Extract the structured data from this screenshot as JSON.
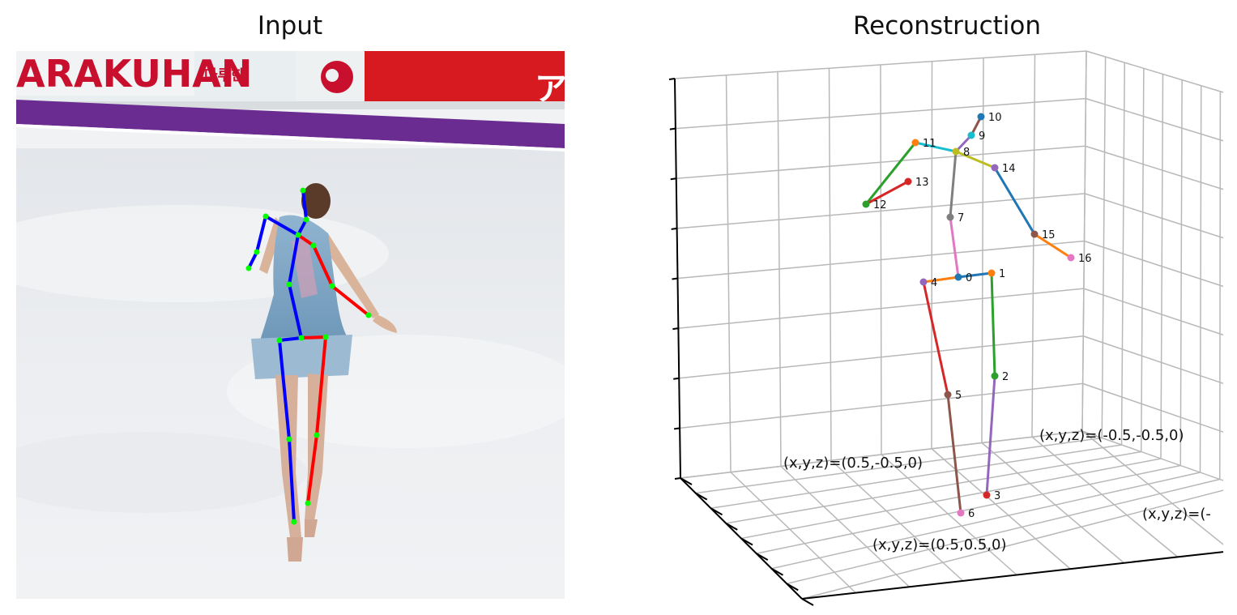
{
  "titles": {
    "left": "Input",
    "right": "Reconstruction"
  },
  "input_image": {
    "description_icon": "figure-skater-photo",
    "banner_text_left": "ARAKUHAN",
    "banner_text_korean": "마루한",
    "banner_text_right": "ア",
    "skeleton_colors": {
      "left_side": "#0000ff",
      "right_side": "#ff0000",
      "joint": "#00ff00"
    }
  },
  "chart_data": {
    "type": "3d-skeleton",
    "title": "Reconstruction",
    "joints": [
      {
        "id": "0",
        "name": "hip",
        "color": "#1f77b4"
      },
      {
        "id": "1",
        "name": "right-hip",
        "color": "#ff7f0e"
      },
      {
        "id": "2",
        "name": "right-knee",
        "color": "#2ca02c"
      },
      {
        "id": "3",
        "name": "right-ankle",
        "color": "#d62728"
      },
      {
        "id": "4",
        "name": "left-hip",
        "color": "#9467bd"
      },
      {
        "id": "5",
        "name": "left-knee",
        "color": "#8c564b"
      },
      {
        "id": "6",
        "name": "left-ankle",
        "color": "#e377c2"
      },
      {
        "id": "7",
        "name": "spine",
        "color": "#7f7f7f"
      },
      {
        "id": "8",
        "name": "thorax",
        "color": "#bcbd22"
      },
      {
        "id": "9",
        "name": "neck",
        "color": "#17becf"
      },
      {
        "id": "10",
        "name": "head",
        "color": "#1f77b4"
      },
      {
        "id": "11",
        "name": "left-shoulder",
        "color": "#ff7f0e"
      },
      {
        "id": "12",
        "name": "left-elbow",
        "color": "#2ca02c"
      },
      {
        "id": "13",
        "name": "left-wrist",
        "color": "#d62728"
      },
      {
        "id": "14",
        "name": "right-shoulder",
        "color": "#9467bd"
      },
      {
        "id": "15",
        "name": "right-elbow",
        "color": "#8c564b"
      },
      {
        "id": "16",
        "name": "right-wrist",
        "color": "#e377c2"
      }
    ],
    "bones": [
      {
        "from": "0",
        "to": "1",
        "color": "#1f77b4"
      },
      {
        "from": "1",
        "to": "2",
        "color": "#2ca02c"
      },
      {
        "from": "2",
        "to": "3",
        "color": "#9467bd"
      },
      {
        "from": "0",
        "to": "4",
        "color": "#ff7f0e"
      },
      {
        "from": "4",
        "to": "5",
        "color": "#d62728"
      },
      {
        "from": "5",
        "to": "6",
        "color": "#8c564b"
      },
      {
        "from": "0",
        "to": "7",
        "color": "#e377c2"
      },
      {
        "from": "7",
        "to": "8",
        "color": "#7f7f7f"
      },
      {
        "from": "8",
        "to": "9",
        "color": "#9467bd"
      },
      {
        "from": "9",
        "to": "10",
        "color": "#8c564b"
      },
      {
        "from": "8",
        "to": "11",
        "color": "#17becf"
      },
      {
        "from": "11",
        "to": "12",
        "color": "#2ca02c"
      },
      {
        "from": "12",
        "to": "13",
        "color": "#d62728"
      },
      {
        "from": "8",
        "to": "14",
        "color": "#bcbd22"
      },
      {
        "from": "14",
        "to": "15",
        "color": "#1f77b4"
      },
      {
        "from": "15",
        "to": "16",
        "color": "#ff7f0e"
      }
    ],
    "annotations": [
      {
        "text": "(x,y,z)=(0.5,-0.5,0)",
        "anchor": "left-floor-corner"
      },
      {
        "text": "(x,y,z)=(-0.5,-0.5,0)",
        "anchor": "back-floor-corner"
      },
      {
        "text": "(x,y,z)=(0.5,0.5,0)",
        "anchor": "front-floor-corner"
      },
      {
        "text": "(x,y,z)=(-",
        "anchor": "right-floor-corner-clipped"
      }
    ],
    "grid": true,
    "tick_labels": false
  }
}
